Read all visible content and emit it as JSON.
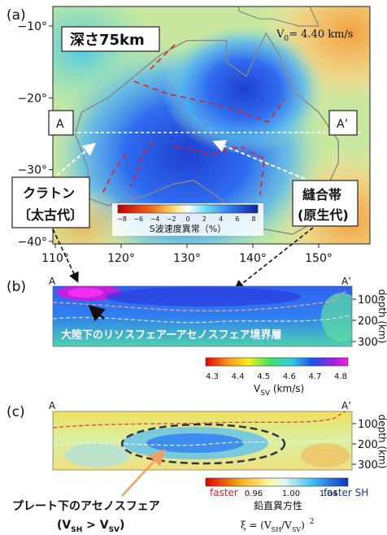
{
  "panel_a": {
    "label": "(a)",
    "depth_label": "深さ75km",
    "v0": {
      "symbol": "V",
      "subscript": "0",
      "text": "= 4.40 km/s"
    },
    "lat_ticks": [
      "−10°",
      "−20°",
      "−30°",
      "−40°"
    ],
    "lon_ticks": [
      "110°",
      "120°",
      "130°",
      "140°",
      "150°"
    ],
    "section_start": "A",
    "section_end": "A’",
    "craton": {
      "line1": "クラトン",
      "line2": "〔太古代〕"
    },
    "suture": {
      "line1": "縫合帯",
      "line2": "(原生代)"
    },
    "colorbar": {
      "ticks": [
        "−8",
        "−6",
        "−4",
        "−2",
        "0",
        "2",
        "4",
        "6",
        "8"
      ],
      "label": "S波速度異常（%）"
    }
  },
  "panel_b": {
    "label": "(b)",
    "section_start": "A",
    "section_end": "A’",
    "depth_ticks": [
      "100",
      "200",
      "300"
    ],
    "depth_axis": "depth (km)",
    "annotation": "大陸下のリソスフェアーアセノスフェア境界層",
    "colorbar": {
      "ticks": [
        "4.3",
        "4.4",
        "4.5",
        "4.6",
        "4.7",
        "4.8"
      ],
      "label": {
        "symbol": "V",
        "subscript": "SV",
        "text": " (km/s)"
      }
    }
  },
  "panel_c": {
    "label": "(c)",
    "section_start": "A",
    "section_end": "A’",
    "depth_ticks": [
      "100",
      "200",
      "300"
    ],
    "depth_axis": "depth (km)",
    "annotation": {
      "line1": "プレート下のアセノスフェア",
      "open": "(V",
      "sub1": "SH",
      "mid": " > V",
      "sub2": "SV",
      "close": ")"
    },
    "colorbar": {
      "ticks": [
        "0.96",
        "1.00",
        "1.04"
      ],
      "left_end": "faster",
      "right_end": "faster SH",
      "title": "鉛直異方性",
      "formula": {
        "prefix": "ξ =  (V",
        "sub1": "SH",
        "mid": "/V",
        "sub2": "SV",
        "suffix": ")",
        "power": "2"
      }
    }
  }
}
